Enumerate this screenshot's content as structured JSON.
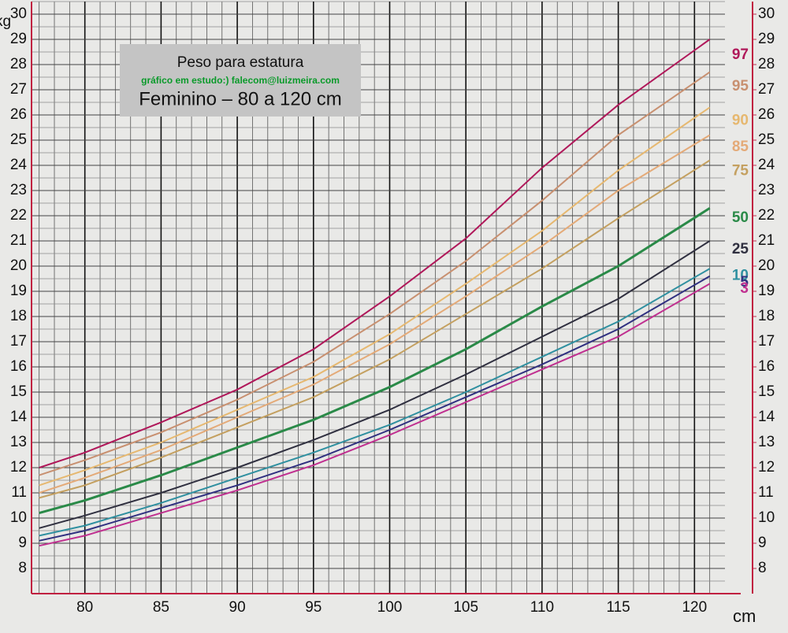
{
  "chart_data": {
    "type": "line",
    "title": "Peso para estatura",
    "subtitle": "gráfico em estudo:) falecom@luizmeira.com",
    "caption": "Feminino – 80 a 120 cm",
    "y_label": "kg",
    "x_label": "cm",
    "x": [
      77,
      80,
      85,
      90,
      95,
      100,
      105,
      110,
      115,
      121
    ],
    "xlim": [
      76.5,
      122
    ],
    "xticks": [
      80,
      85,
      90,
      95,
      100,
      105,
      110,
      115,
      120
    ],
    "ylim": [
      7,
      30.5
    ],
    "yticks": [
      8,
      9,
      10,
      11,
      12,
      13,
      14,
      15,
      16,
      17,
      18,
      19,
      20,
      21,
      22,
      23,
      24,
      25,
      26,
      27,
      28,
      29,
      30
    ],
    "y2lim": [
      7,
      30.5
    ],
    "y2ticks": [
      8,
      9,
      10,
      11,
      12,
      13,
      14,
      15,
      16,
      17,
      18,
      19,
      20,
      21,
      22,
      23,
      24,
      25,
      26,
      27,
      28,
      29,
      30
    ],
    "grid": true,
    "series": [
      {
        "name": "97",
        "color": "#b0185a",
        "values": [
          12.0,
          12.6,
          13.8,
          15.1,
          16.7,
          18.8,
          21.1,
          23.9,
          26.4,
          29.0
        ]
      },
      {
        "name": "95",
        "color": "#c89070",
        "values": [
          11.7,
          12.3,
          13.4,
          14.7,
          16.2,
          18.1,
          20.2,
          22.6,
          25.2,
          27.7
        ]
      },
      {
        "name": "90",
        "color": "#e6b870",
        "values": [
          11.3,
          11.9,
          13.0,
          14.3,
          15.6,
          17.3,
          19.3,
          21.4,
          23.8,
          26.3
        ]
      },
      {
        "name": "85",
        "color": "#e4aa78",
        "values": [
          11.0,
          11.6,
          12.7,
          14.0,
          15.3,
          16.9,
          18.8,
          20.8,
          23.0,
          25.2
        ]
      },
      {
        "name": "75",
        "color": "#c4a060",
        "values": [
          10.8,
          11.3,
          12.4,
          13.6,
          14.8,
          16.3,
          18.1,
          19.9,
          21.9,
          24.2
        ]
      },
      {
        "name": "50",
        "color": "#2a8a48",
        "values": [
          10.2,
          10.7,
          11.7,
          12.8,
          13.9,
          15.2,
          16.7,
          18.4,
          20.0,
          22.3
        ]
      },
      {
        "name": "25",
        "color": "#303040",
        "values": [
          9.6,
          10.1,
          11.0,
          12.0,
          13.1,
          14.3,
          15.7,
          17.2,
          18.7,
          21.0
        ]
      },
      {
        "name": "10",
        "color": "#3090a0",
        "values": [
          9.3,
          9.7,
          10.6,
          11.6,
          12.6,
          13.7,
          15.0,
          16.4,
          17.8,
          19.9
        ]
      },
      {
        "name": "5",
        "color": "#303080",
        "values": [
          9.1,
          9.5,
          10.4,
          11.3,
          12.3,
          13.5,
          14.8,
          16.1,
          17.5,
          19.6
        ]
      },
      {
        "name": "3",
        "color": "#c03090",
        "values": [
          8.9,
          9.3,
          10.2,
          11.1,
          12.1,
          13.3,
          14.6,
          15.9,
          17.2,
          19.3
        ]
      }
    ]
  }
}
